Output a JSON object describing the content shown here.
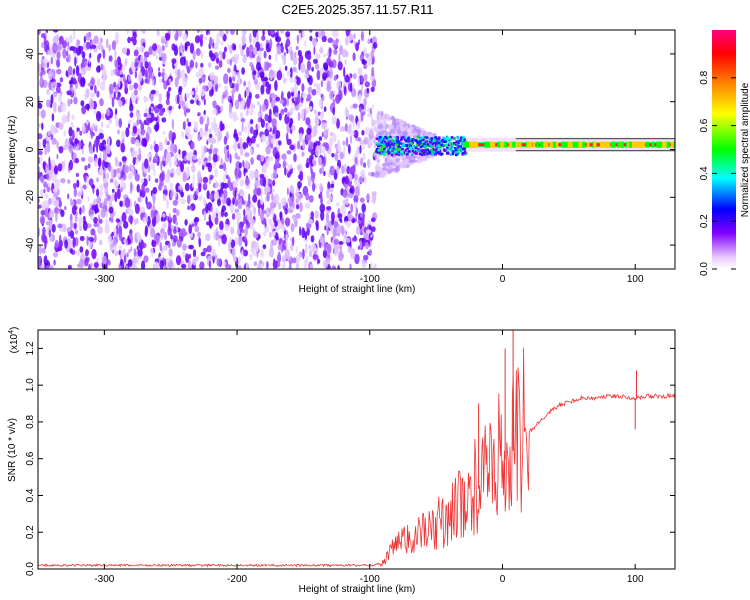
{
  "title": "C2E5.2025.357.11.57.R11",
  "chart_data": [
    {
      "type": "heatmap",
      "xlabel": "Height of straight line (km)",
      "ylabel": "Frequency (Hz)",
      "xlim": [
        -350,
        130
      ],
      "ylim": [
        -50,
        50
      ],
      "xticks": [
        -300,
        -200,
        -100,
        0,
        100
      ],
      "xtick_labels": [
        "-300",
        "-200",
        "-100",
        "0",
        "100"
      ],
      "yticks": [
        -40,
        -20,
        0,
        20,
        40
      ],
      "ytick_labels": [
        "-40",
        "-20",
        "0",
        "20",
        "40"
      ],
      "noise_region_x": [
        -350,
        -96
      ],
      "signal_line_freq": 2,
      "colorbar": {
        "label": "Normalized spectral amplitude",
        "range": [
          0,
          1
        ],
        "ticks": [
          0.0,
          0.2,
          0.4,
          0.6,
          0.8
        ],
        "tick_labels": [
          "0.0",
          "0.2",
          "0.4",
          "0.6",
          "0.8"
        ],
        "colors": [
          "#ffffff",
          "#e8c8ff",
          "#8000ff",
          "#0000ff",
          "#00ffff",
          "#00ff00",
          "#ffff00",
          "#ff8000",
          "#ff0000",
          "#ff0080"
        ]
      }
    },
    {
      "type": "line",
      "xlabel": "Height of straight line (km)",
      "ylabel": "SNR (10 * v/v)",
      "y_scale_label": "(x10",
      "y_scale_exp": "4",
      "y_scale_close": ")",
      "xlim": [
        -350,
        130
      ],
      "ylim": [
        0,
        1.3
      ],
      "xticks": [
        -300,
        -200,
        -100,
        0,
        100
      ],
      "xtick_labels": [
        "-300",
        "-200",
        "-100",
        "0",
        "100"
      ],
      "yticks": [
        0.0,
        0.2,
        0.4,
        0.6,
        0.8,
        1.0,
        1.2
      ],
      "ytick_labels": [
        "0.0",
        "0.2",
        "0.4",
        "0.6",
        "0.8",
        "1.0",
        "1.2"
      ],
      "line_color": "#ee3333",
      "series": [
        {
          "name": "SNR",
          "x": [
            -350,
            -300,
            -250,
            -200,
            -150,
            -100,
            -90,
            -85,
            -80,
            -70,
            -60,
            -50,
            -40,
            -30,
            -20,
            -10,
            0,
            5,
            10,
            20,
            30,
            40,
            50,
            60,
            70,
            80,
            90,
            100,
            110,
            120,
            130
          ],
          "y": [
            0.02,
            0.02,
            0.02,
            0.02,
            0.02,
            0.02,
            0.03,
            0.08,
            0.12,
            0.16,
            0.18,
            0.22,
            0.28,
            0.34,
            0.42,
            0.5,
            0.58,
            0.62,
            0.66,
            0.74,
            0.82,
            0.88,
            0.91,
            0.93,
            0.93,
            0.94,
            0.94,
            0.93,
            0.94,
            0.94,
            0.94
          ]
        }
      ],
      "spikes": [
        {
          "x": 8,
          "y": 1.3
        },
        {
          "x": 2,
          "y": 1.2
        },
        {
          "x": -18,
          "y": 0.9
        },
        {
          "x": 101,
          "y": 1.08
        },
        {
          "x": 100,
          "y": 0.76
        }
      ]
    }
  ]
}
